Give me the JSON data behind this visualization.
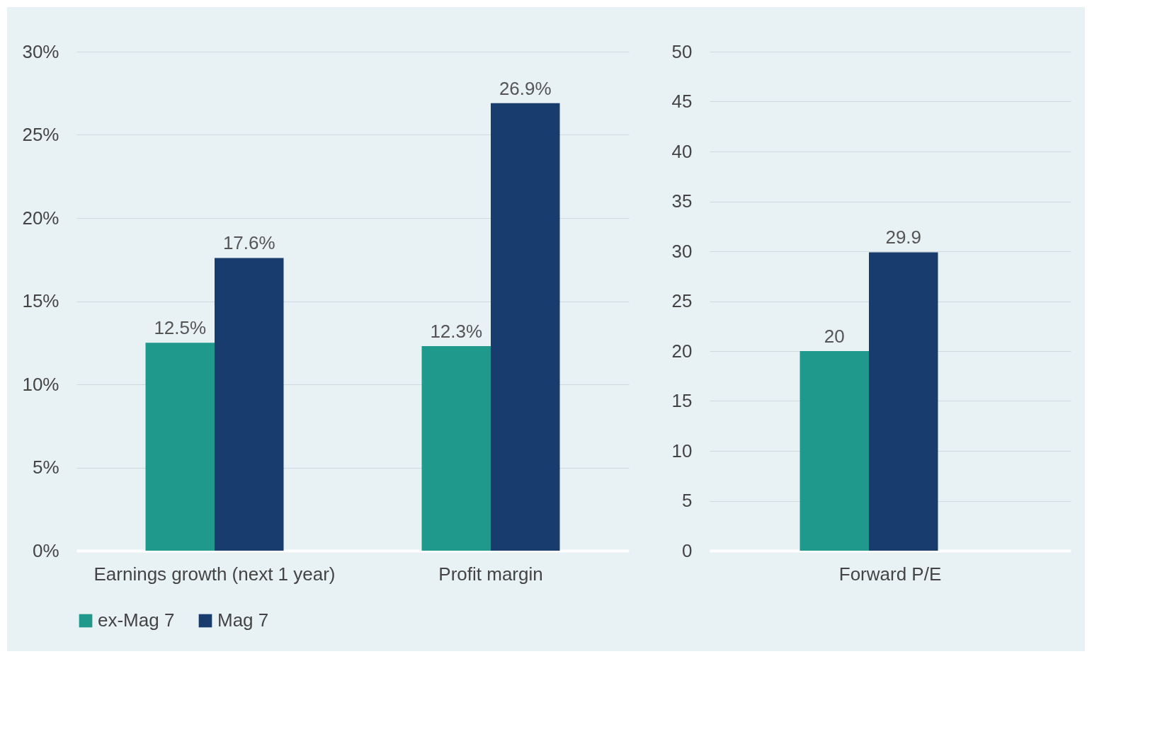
{
  "chart_data": [
    {
      "type": "bar",
      "categories": [
        "Earnings growth (next 1 year)",
        "Profit margin"
      ],
      "series": [
        {
          "name": "ex-Mag 7",
          "color": "#1f998b",
          "values": [
            12.5,
            12.3
          ],
          "value_labels": [
            "12.5%",
            "12.3%"
          ]
        },
        {
          "name": "Mag 7",
          "color": "#173c6d",
          "values": [
            17.6,
            26.9
          ],
          "value_labels": [
            "17.6%",
            "26.9%"
          ]
        }
      ],
      "ylim": [
        0,
        30
      ],
      "yticks": [
        {
          "value": 0,
          "label": "0%"
        },
        {
          "value": 5,
          "label": "5%"
        },
        {
          "value": 10,
          "label": "10%"
        },
        {
          "value": 15,
          "label": "15%"
        },
        {
          "value": 20,
          "label": "20%"
        },
        {
          "value": 25,
          "label": "25%"
        },
        {
          "value": 30,
          "label": "30%"
        }
      ],
      "grid": "y",
      "legend": "bottom"
    },
    {
      "type": "bar",
      "categories": [
        "Forward P/E"
      ],
      "series": [
        {
          "name": "ex-Mag 7",
          "color": "#1f998b",
          "values": [
            20
          ]
        },
        {
          "name": "Mag 7",
          "color": "#173c6d",
          "values": [
            29.9
          ]
        }
      ],
      "ylim": [
        0,
        50
      ],
      "yticks": [
        0,
        5,
        10,
        15,
        20,
        25,
        30,
        35,
        40,
        45,
        50
      ],
      "grid": "y",
      "data_labels": true,
      "legend": "bottom"
    }
  ]
}
